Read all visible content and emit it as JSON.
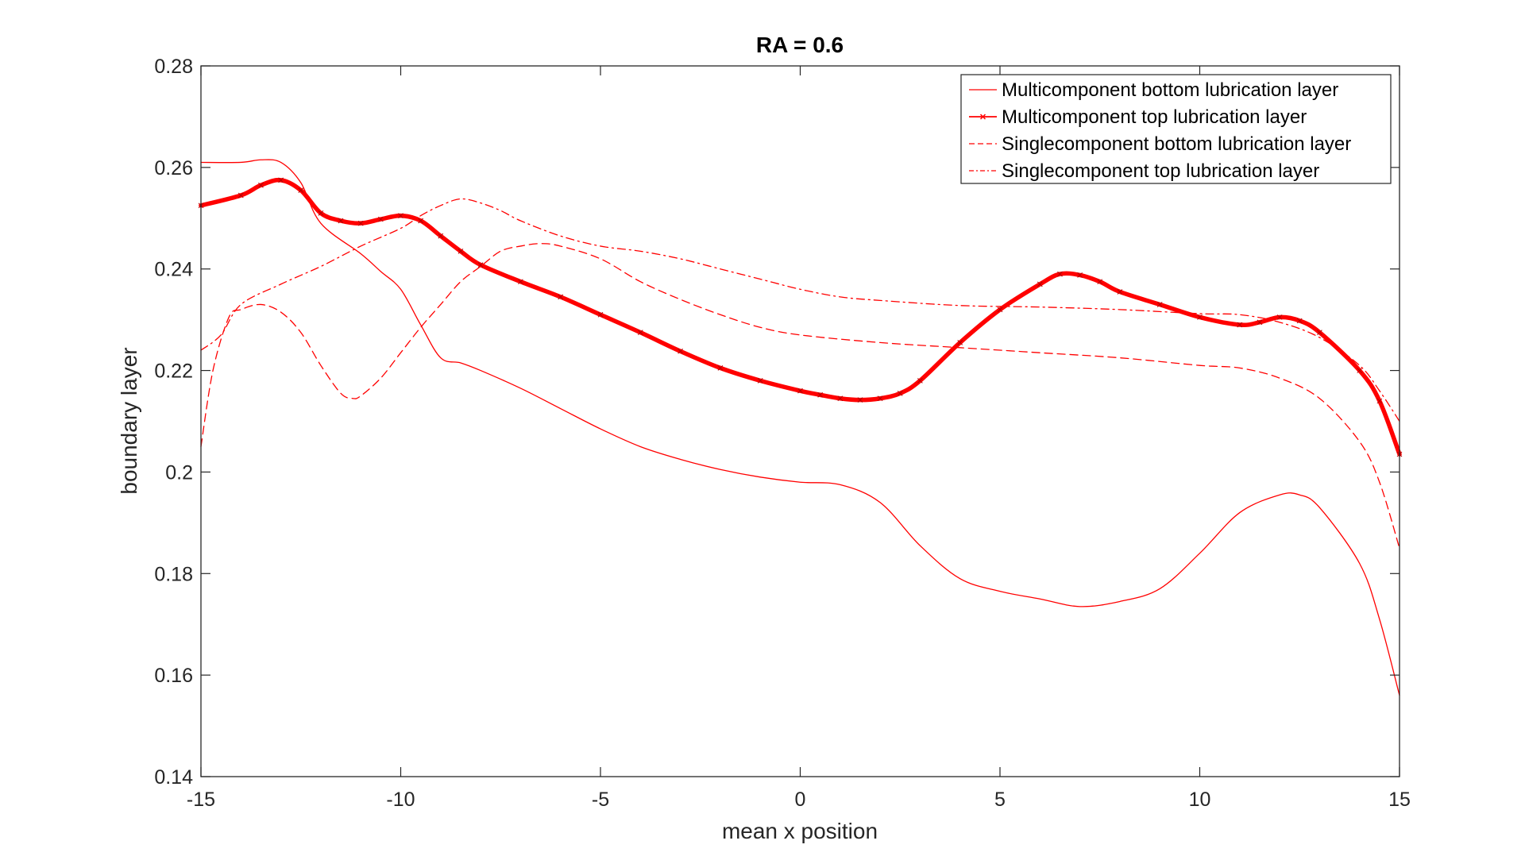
{
  "chart_data": {
    "type": "line",
    "title": "RA = 0.6",
    "xlabel": "mean x position",
    "ylabel": "boundary layer",
    "xlim": [
      -15,
      15
    ],
    "ylim": [
      0.14,
      0.28
    ],
    "xticks": [
      -15,
      -10,
      -5,
      0,
      5,
      10,
      15
    ],
    "xtick_labels": [
      "-15",
      "-10",
      "-5",
      "0",
      "5",
      "10",
      "15"
    ],
    "yticks": [
      0.14,
      0.16,
      0.18,
      0.2,
      0.22,
      0.24,
      0.26,
      0.28
    ],
    "ytick_labels": [
      "0.14",
      "0.16",
      "0.18",
      "0.2",
      "0.22",
      "0.24",
      "0.26",
      "0.28"
    ],
    "grid": false,
    "legend_position": "top-right",
    "series_color": "#ff0000",
    "series": [
      {
        "name": "Multicomponent bottom lubrication layer",
        "style": "solid",
        "marker": "none",
        "x": [
          -15,
          -14,
          -13.5,
          -13,
          -12.5,
          -12,
          -11,
          -10.5,
          -10,
          -9.5,
          -9,
          -8.5,
          -8,
          -7,
          -6,
          -5,
          -4,
          -3,
          -2,
          -1,
          0,
          1,
          2,
          3,
          4,
          5,
          6,
          7,
          8,
          9,
          10,
          11,
          12,
          12.5,
          13,
          14,
          14.5,
          15
        ],
        "y": [
          0.261,
          0.261,
          0.2615,
          0.261,
          0.257,
          0.249,
          0.243,
          0.2395,
          0.236,
          0.229,
          0.2225,
          0.2215,
          0.22,
          0.2165,
          0.2125,
          0.2085,
          0.205,
          0.2025,
          0.2005,
          0.199,
          0.198,
          0.1975,
          0.194,
          0.1855,
          0.179,
          0.1765,
          0.175,
          0.1735,
          0.1745,
          0.177,
          0.184,
          0.192,
          0.1955,
          0.1955,
          0.193,
          0.182,
          0.171,
          0.156
        ]
      },
      {
        "name": "Multicomponent top lubrication layer",
        "style": "solid-thick",
        "marker": "x",
        "x": [
          -15,
          -14,
          -13.5,
          -13,
          -12.5,
          -12,
          -11.5,
          -11,
          -10.5,
          -10,
          -9.5,
          -9,
          -8.5,
          -8,
          -7,
          -6,
          -5,
          -4,
          -3,
          -2,
          -1,
          0,
          0.5,
          1,
          1.5,
          2,
          2.5,
          3,
          4,
          5,
          6,
          6.5,
          7,
          7.5,
          8,
          9,
          10,
          11,
          11.5,
          12,
          12.5,
          13,
          14,
          14.5,
          15
        ],
        "y": [
          0.2525,
          0.2545,
          0.2565,
          0.2575,
          0.2555,
          0.251,
          0.2495,
          0.249,
          0.2498,
          0.2505,
          0.2495,
          0.2465,
          0.2435,
          0.2408,
          0.2375,
          0.2345,
          0.231,
          0.2275,
          0.2238,
          0.2205,
          0.218,
          0.216,
          0.2152,
          0.2145,
          0.2142,
          0.2145,
          0.2155,
          0.218,
          0.2255,
          0.232,
          0.237,
          0.239,
          0.2388,
          0.2375,
          0.2355,
          0.233,
          0.2305,
          0.229,
          0.2295,
          0.2305,
          0.2298,
          0.2275,
          0.22,
          0.214,
          0.2035
        ]
      },
      {
        "name": "Singlecomponent bottom lubrication layer",
        "style": "dashed",
        "marker": "none",
        "x": [
          -15,
          -14.7,
          -14.3,
          -14,
          -13.5,
          -13,
          -12.5,
          -12,
          -11.5,
          -11.2,
          -11,
          -10.5,
          -10,
          -9.5,
          -9,
          -8.5,
          -8,
          -7.5,
          -7,
          -6.5,
          -6,
          -5,
          -4,
          -3,
          -2,
          -1,
          0,
          2,
          4,
          6,
          8,
          10,
          11,
          12,
          13,
          14,
          14.5,
          15
        ],
        "y": [
          0.205,
          0.22,
          0.2305,
          0.232,
          0.233,
          0.2315,
          0.2275,
          0.221,
          0.2155,
          0.2145,
          0.215,
          0.2185,
          0.2235,
          0.2285,
          0.233,
          0.2375,
          0.2405,
          0.2435,
          0.2445,
          0.245,
          0.2445,
          0.242,
          0.2375,
          0.234,
          0.231,
          0.2285,
          0.227,
          0.2255,
          0.2245,
          0.2235,
          0.2225,
          0.221,
          0.2205,
          0.2185,
          0.2145,
          0.206,
          0.198,
          0.185
        ]
      },
      {
        "name": "Singlecomponent top lubrication layer",
        "style": "dashdot",
        "marker": "none",
        "x": [
          -15,
          -14.5,
          -14,
          -13,
          -12,
          -11,
          -10,
          -9.5,
          -9,
          -8.5,
          -8,
          -7.5,
          -7,
          -6,
          -5,
          -4,
          -3,
          -2,
          -1,
          0,
          1,
          2,
          4,
          6,
          8,
          10,
          11,
          12,
          13,
          14,
          14.5,
          15
        ],
        "y": [
          0.224,
          0.227,
          0.233,
          0.237,
          0.2405,
          0.2445,
          0.248,
          0.2505,
          0.2525,
          0.2538,
          0.253,
          0.2515,
          0.2495,
          0.2465,
          0.2445,
          0.2435,
          0.242,
          0.24,
          0.238,
          0.236,
          0.2345,
          0.2338,
          0.2328,
          0.2325,
          0.232,
          0.2312,
          0.231,
          0.2295,
          0.2265,
          0.221,
          0.216,
          0.21
        ]
      }
    ]
  }
}
